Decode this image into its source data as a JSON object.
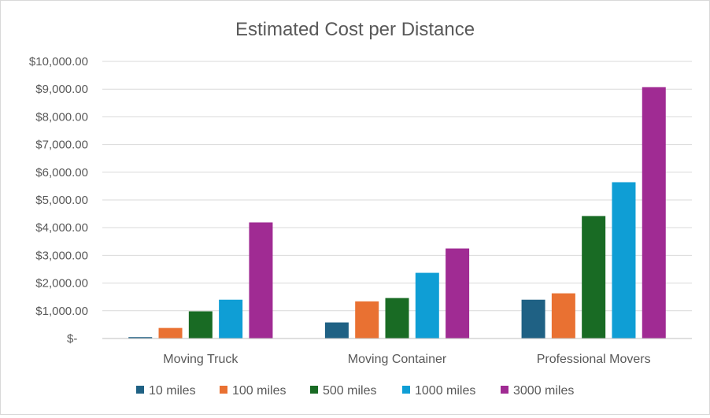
{
  "chart_data": {
    "type": "bar",
    "title": "Estimated Cost per Distance",
    "xlabel": "",
    "ylabel": "",
    "categories": [
      "Moving Truck",
      "Moving Container",
      "Professional Movers"
    ],
    "series": [
      {
        "name": "10 miles",
        "color": "#1f6184",
        "values": [
          50,
          580,
          1400
        ]
      },
      {
        "name": "100 miles",
        "color": "#e97132",
        "values": [
          380,
          1340,
          1630
        ]
      },
      {
        "name": "500 miles",
        "color": "#196b24",
        "values": [
          980,
          1460,
          4420
        ]
      },
      {
        "name": "1000 miles",
        "color": "#0f9ed5",
        "values": [
          1400,
          2370,
          5640
        ]
      },
      {
        "name": "3000 miles",
        "color": "#a02b93",
        "values": [
          4190,
          3250,
          9070
        ]
      }
    ],
    "yticks": [
      0,
      1000,
      2000,
      3000,
      4000,
      5000,
      6000,
      7000,
      8000,
      9000,
      10000
    ],
    "ytick_labels": [
      "$-",
      "$1,000.00",
      "$2,000.00",
      "$3,000.00",
      "$4,000.00",
      "$5,000.00",
      "$6,000.00",
      "$7,000.00",
      "$8,000.00",
      "$9,000.00",
      "$10,000.00"
    ],
    "ylim": [
      0,
      10000
    ],
    "grid": true,
    "legend_position": "bottom"
  }
}
